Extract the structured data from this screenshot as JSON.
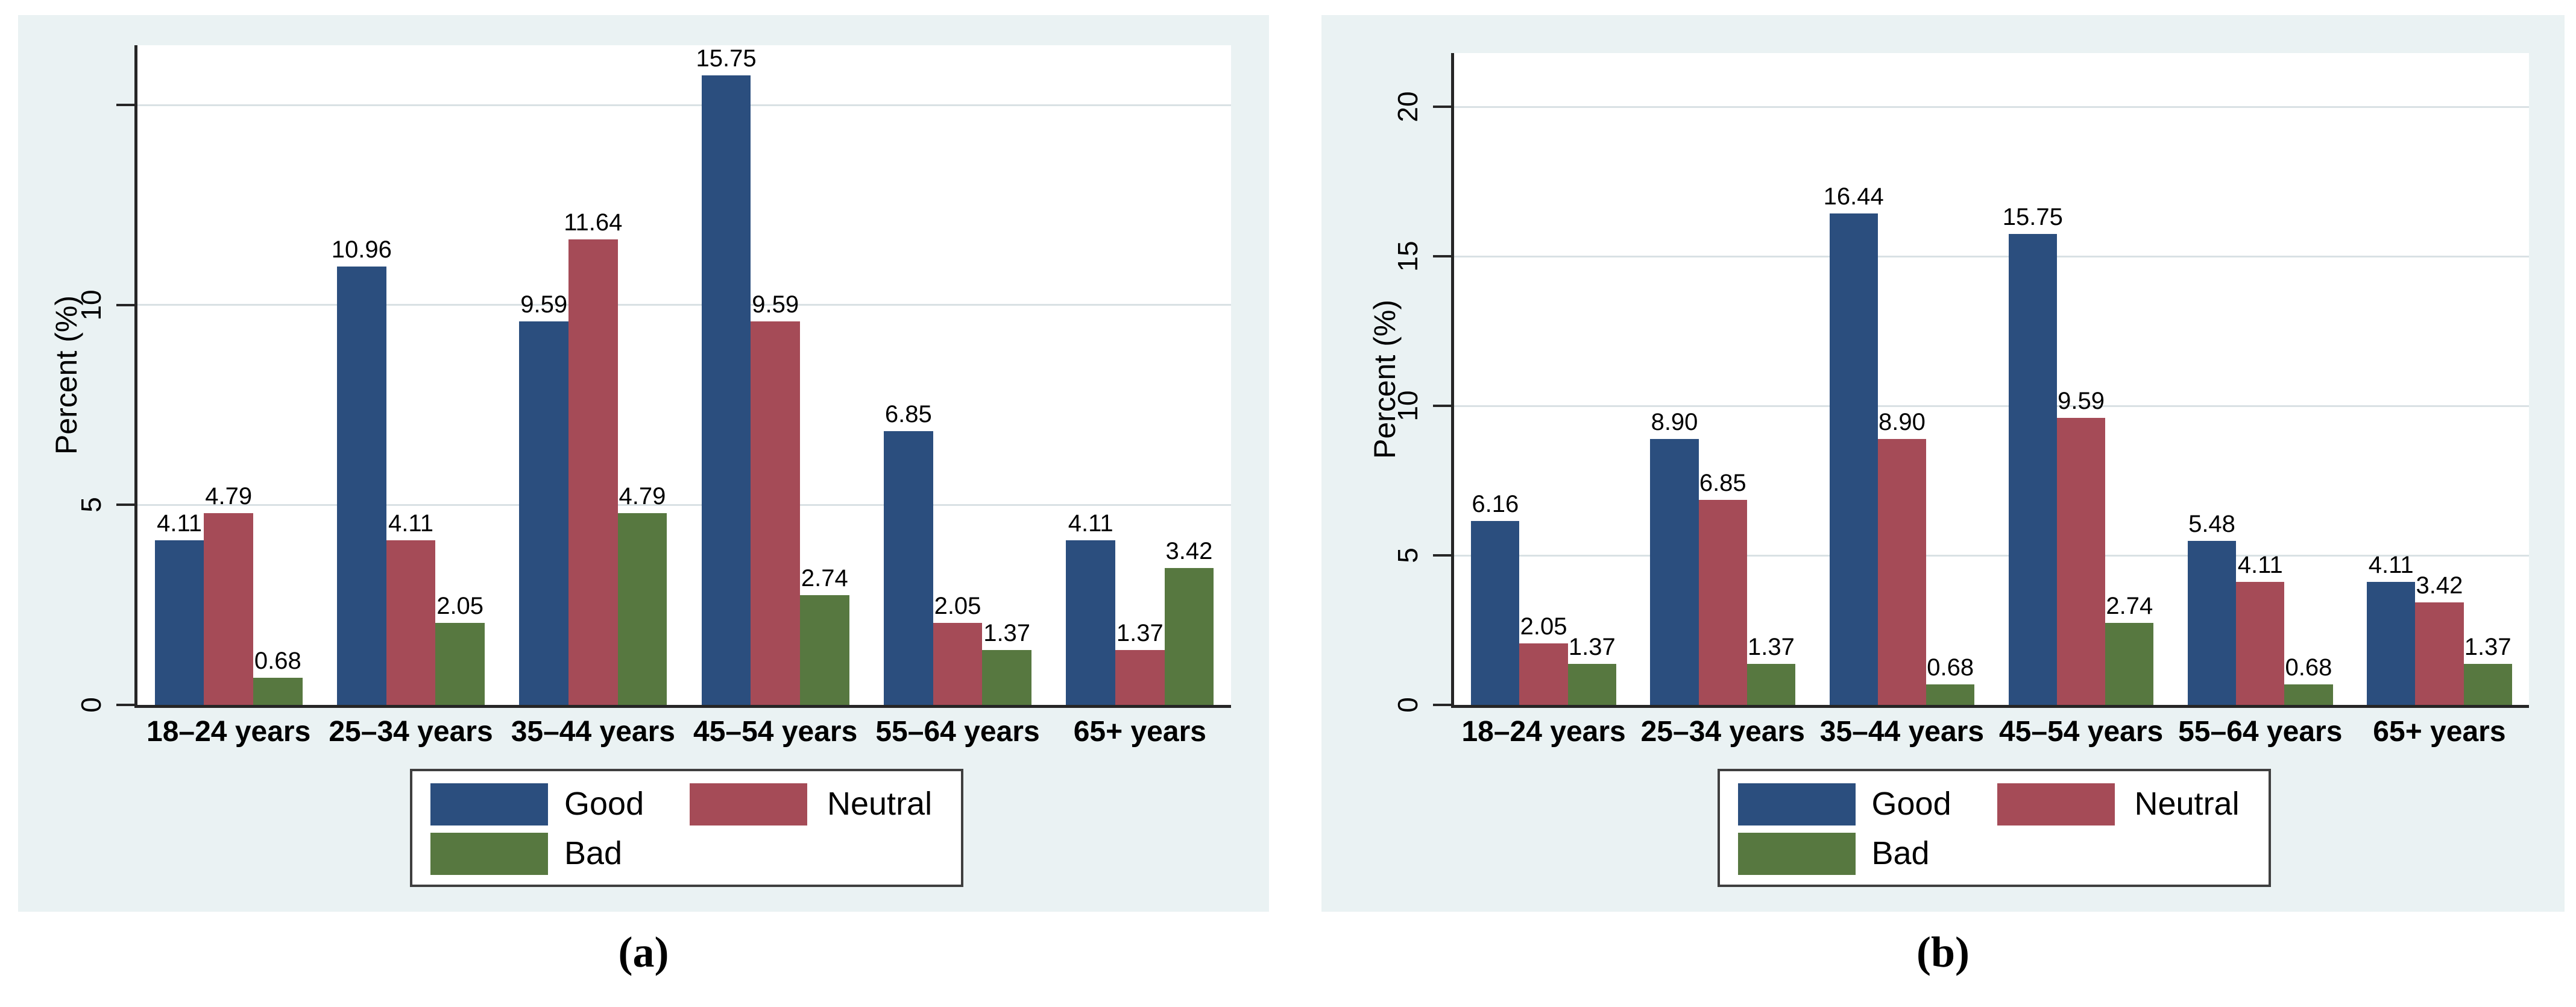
{
  "figure": {
    "captions": [
      {
        "text": "(a)"
      },
      {
        "text": "(b)"
      }
    ]
  },
  "colors": {
    "graph_background": "#EAF2F3",
    "plot_background": "#FFFFFF",
    "gridline": "#D9E1E4",
    "axis": "#262626",
    "good": "#2B4E7E",
    "neutral": "#A54B57",
    "bad": "#577840",
    "text": "#000000",
    "legend_border": "#3F3F3F"
  },
  "legend": {
    "items": [
      {
        "label": "Good",
        "color_key": "good"
      },
      {
        "label": "Neutral",
        "color_key": "neutral"
      },
      {
        "label": "Bad",
        "color_key": "bad"
      }
    ]
  },
  "chart_data": [
    {
      "id": "a",
      "type": "bar",
      "caption": "(a)",
      "ylabel": "Percent (%)",
      "ylim": [
        0,
        16.5
      ],
      "grid": true,
      "legend_position": "bottom",
      "yticks": [
        {
          "value": 0,
          "label": "0"
        },
        {
          "value": 5,
          "label": "5"
        },
        {
          "value": 10,
          "label": "10"
        },
        {
          "value": 15,
          "label": ""
        }
      ],
      "categories": [
        "18–24 years",
        "25–34 years",
        "35–44 years",
        "45–54 years",
        "55–64 years",
        "65+ years"
      ],
      "series": [
        {
          "name": "Good",
          "values": [
            4.11,
            10.96,
            9.59,
            15.75,
            6.85,
            4.11
          ]
        },
        {
          "name": "Neutral",
          "values": [
            4.79,
            4.11,
            11.64,
            9.59,
            2.05,
            1.37
          ]
        },
        {
          "name": "Bad",
          "values": [
            0.68,
            2.05,
            4.79,
            2.74,
            1.37,
            3.42
          ]
        }
      ]
    },
    {
      "id": "b",
      "type": "bar",
      "caption": "(b)",
      "ylabel": "Percent (%)",
      "ylim": [
        0,
        21.8
      ],
      "grid": true,
      "legend_position": "bottom",
      "yticks": [
        {
          "value": 0,
          "label": "0"
        },
        {
          "value": 5,
          "label": "5"
        },
        {
          "value": 10,
          "label": "10"
        },
        {
          "value": 15,
          "label": "15"
        },
        {
          "value": 20,
          "label": "20"
        }
      ],
      "categories": [
        "18–24 years",
        "25–34 years",
        "35–44 years",
        "45–54 years",
        "55–64 years",
        "65+ years"
      ],
      "series": [
        {
          "name": "Good",
          "values": [
            6.16,
            8.9,
            16.44,
            15.75,
            5.48,
            4.11
          ]
        },
        {
          "name": "Neutral",
          "values": [
            2.05,
            6.85,
            8.9,
            9.59,
            4.11,
            3.42
          ]
        },
        {
          "name": "Bad",
          "values": [
            1.37,
            1.37,
            0.68,
            2.74,
            0.68,
            1.37
          ]
        }
      ]
    }
  ]
}
